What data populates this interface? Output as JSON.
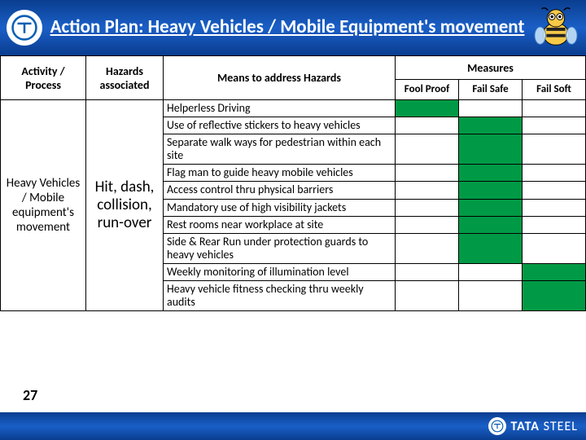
{
  "header": {
    "title": "Action Plan: Heavy Vehicles / Mobile Equipment's movement",
    "logo_color": "#0a5fb4"
  },
  "table": {
    "headers": {
      "activity": "Activity / Process",
      "hazards": "Hazards associated",
      "means": "Means to address Hazards",
      "measures_group": "Measures",
      "fool_proof": "Fool Proof",
      "fail_safe": "Fail Safe",
      "fail_soft": "Fail Soft"
    },
    "activity_cell": "Heavy Vehicles / Mobile equipment's movement",
    "hazards_cell": "Hit, dash, collision, run-over",
    "rows": [
      {
        "means": "Helperless  Driving",
        "fool_proof": "green",
        "fail_safe": "",
        "fail_soft": ""
      },
      {
        "means": "Use of reflective stickers to heavy vehicles",
        "fool_proof": "",
        "fail_safe": "green",
        "fail_soft": ""
      },
      {
        "means": "Separate walk ways for pedestrian within each site",
        "fool_proof": "",
        "fail_safe": "green",
        "fail_soft": ""
      },
      {
        "means": "Flag man to guide heavy mobile vehicles",
        "fool_proof": "",
        "fail_safe": "green",
        "fail_soft": ""
      },
      {
        "means": "Access control thru physical barriers",
        "fool_proof": "",
        "fail_safe": "green",
        "fail_soft": ""
      },
      {
        "means": "Mandatory use of high visibility jackets",
        "fool_proof": "",
        "fail_safe": "green",
        "fail_soft": ""
      },
      {
        "means": "Rest rooms near workplace at site",
        "fool_proof": "",
        "fail_safe": "green",
        "fail_soft": ""
      },
      {
        "means": "Side & Rear Run under protection guards to heavy vehicles",
        "fool_proof": "",
        "fail_safe": "green",
        "fail_soft": ""
      },
      {
        "means": "Weekly monitoring of illumination level",
        "fool_proof": "",
        "fail_safe": "",
        "fail_soft": "green"
      },
      {
        "means": "Heavy vehicle fitness checking thru weekly audits",
        "fool_proof": "",
        "fail_safe": "",
        "fail_soft": "green"
      }
    ],
    "green_color": "#009a46"
  },
  "slide_number": "27",
  "footer": {
    "brand": "TATA",
    "brand_sub": "STEEL"
  }
}
